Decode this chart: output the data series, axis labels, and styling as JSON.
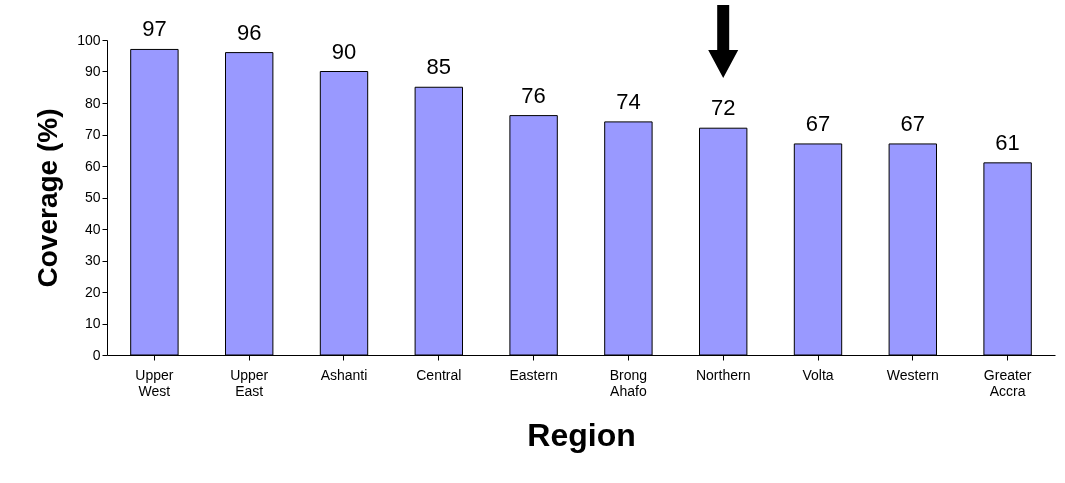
{
  "chart_data": {
    "type": "bar",
    "xlabel": "Region",
    "ylabel": "Coverage (%)",
    "categories": [
      "Upper West",
      "Upper East",
      "Ashanti",
      "Central",
      "Eastern",
      "Brong Ahafo",
      "Northern",
      "Volta",
      "Western",
      "Greater Accra"
    ],
    "values": [
      97,
      96,
      90,
      85,
      76,
      74,
      72,
      67,
      67,
      61
    ],
    "color": "#9999ff",
    "ylim": [
      0,
      100
    ],
    "yticks": [
      0,
      10,
      20,
      30,
      40,
      50,
      60,
      70,
      80,
      90,
      100
    ],
    "grid": false,
    "data_labels": true
  }
}
